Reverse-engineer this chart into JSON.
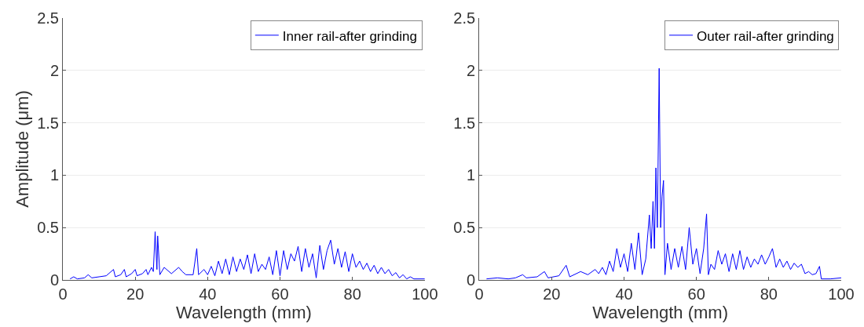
{
  "chart_data": [
    {
      "type": "line",
      "xlabel": "Wavelength (mm)",
      "ylabel": "Amplitude (μm)",
      "xlim": [
        0,
        100
      ],
      "xticks": [
        0,
        20,
        40,
        60,
        80,
        100
      ],
      "ylim": [
        0,
        2.5
      ],
      "yticks": [
        0,
        0.5,
        1,
        1.5,
        2,
        2.5
      ],
      "grid": "y",
      "legend": "top right",
      "marker": "none",
      "line_style": "solid",
      "series": [
        {
          "name": "Inner rail-after grinding",
          "color": "#0000ff",
          "x": [
            2,
            3,
            4,
            6,
            7,
            8,
            10,
            12,
            14,
            14.5,
            16,
            17,
            17.5,
            19,
            20,
            20.5,
            22,
            23,
            23.5,
            24.5,
            25,
            25.5,
            26,
            26.2,
            26.8,
            28,
            30,
            32,
            33,
            34,
            36,
            37,
            37.5,
            39,
            40,
            41,
            42,
            43,
            44,
            45,
            46,
            47,
            48,
            49,
            50,
            51,
            52,
            53,
            54,
            55,
            56,
            57,
            58,
            59,
            60,
            61,
            62,
            63,
            64,
            65,
            66,
            67,
            68,
            69,
            70,
            71,
            72,
            73,
            74,
            75,
            76,
            77,
            78,
            79,
            80,
            81,
            82,
            83,
            84,
            85,
            86,
            87,
            88,
            89,
            90,
            91,
            92,
            93,
            94,
            95,
            96,
            97,
            100
          ],
          "values": [
            0.01,
            0.03,
            0.01,
            0.02,
            0.05,
            0.02,
            0.03,
            0.04,
            0.1,
            0.03,
            0.05,
            0.1,
            0.03,
            0.06,
            0.1,
            0.04,
            0.06,
            0.1,
            0.05,
            0.12,
            0.08,
            0.46,
            0.1,
            0.42,
            0.05,
            0.12,
            0.06,
            0.12,
            0.08,
            0.05,
            0.05,
            0.3,
            0.05,
            0.1,
            0.05,
            0.13,
            0.04,
            0.18,
            0.06,
            0.2,
            0.05,
            0.22,
            0.08,
            0.2,
            0.1,
            0.24,
            0.06,
            0.25,
            0.08,
            0.15,
            0.1,
            0.22,
            0.05,
            0.28,
            0.04,
            0.28,
            0.1,
            0.25,
            0.18,
            0.32,
            0.08,
            0.3,
            0.12,
            0.25,
            0.02,
            0.33,
            0.1,
            0.28,
            0.38,
            0.15,
            0.3,
            0.12,
            0.27,
            0.08,
            0.25,
            0.12,
            0.18,
            0.1,
            0.16,
            0.08,
            0.14,
            0.06,
            0.12,
            0.06,
            0.1,
            0.04,
            0.07,
            0.02,
            0.05,
            0.01,
            0.03,
            0.01,
            0.01
          ]
        }
      ]
    },
    {
      "type": "line",
      "xlabel": "Wavelength (mm)",
      "xlim": [
        0,
        100
      ],
      "xticks": [
        0,
        20,
        40,
        60,
        80,
        100
      ],
      "ylim": [
        0,
        2.5
      ],
      "yticks": [
        0,
        0.5,
        1,
        1.5,
        2,
        2.5
      ],
      "grid": "y",
      "legend": "top right",
      "marker": "none",
      "line_style": "solid",
      "series": [
        {
          "name": "Outer rail-after grinding",
          "color": "#0000ff",
          "x": [
            2,
            5,
            8,
            10,
            12,
            13,
            16,
            18,
            19,
            22,
            24,
            25,
            28,
            30,
            32,
            33,
            34,
            35,
            36,
            37,
            38,
            39,
            40,
            41,
            42,
            43,
            44,
            45,
            46,
            47,
            47.5,
            48,
            48.4,
            48.8,
            49.2,
            49.7,
            50.1,
            50.5,
            50.9,
            51.3,
            52,
            53,
            54,
            55,
            56,
            57,
            58,
            59,
            60,
            61,
            62,
            62.8,
            63.3,
            64,
            65,
            66,
            67,
            68,
            69,
            70,
            71,
            72,
            73,
            74,
            75,
            76,
            77,
            78,
            79,
            80,
            81,
            82,
            83,
            84,
            85,
            86,
            87,
            88,
            89,
            90,
            91,
            92,
            93,
            94,
            94.5,
            97,
            100
          ],
          "values": [
            0.01,
            0.02,
            0.01,
            0.02,
            0.05,
            0.02,
            0.03,
            0.08,
            0.02,
            0.04,
            0.14,
            0.03,
            0.08,
            0.05,
            0.1,
            0.06,
            0.12,
            0.05,
            0.18,
            0.08,
            0.3,
            0.12,
            0.25,
            0.08,
            0.35,
            0.1,
            0.45,
            0.05,
            0.2,
            0.62,
            0.3,
            0.75,
            0.3,
            1.07,
            0.5,
            2.02,
            0.5,
            0.8,
            0.95,
            0.05,
            0.35,
            0.1,
            0.3,
            0.12,
            0.32,
            0.1,
            0.5,
            0.15,
            0.3,
            0.06,
            0.3,
            0.63,
            0.05,
            0.15,
            0.1,
            0.28,
            0.15,
            0.25,
            0.08,
            0.25,
            0.1,
            0.28,
            0.1,
            0.22,
            0.12,
            0.2,
            0.15,
            0.24,
            0.15,
            0.22,
            0.3,
            0.12,
            0.2,
            0.12,
            0.18,
            0.1,
            0.16,
            0.12,
            0.15,
            0.06,
            0.08,
            0.05,
            0.06,
            0.13,
            0.01,
            0.01,
            0.02
          ]
        }
      ]
    }
  ]
}
